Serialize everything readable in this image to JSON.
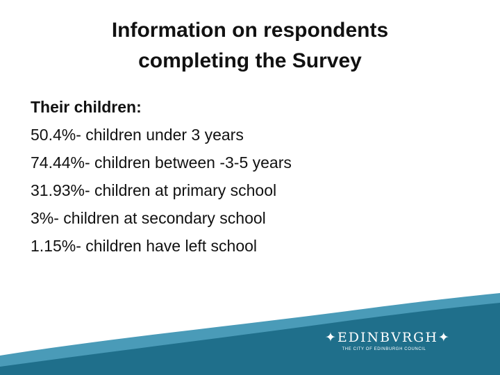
{
  "slide": {
    "title_line1": "Information on respondents",
    "title_line2": "completing the Survey",
    "heading": "Their children:",
    "items": [
      "50.4%- children under 3 years",
      "74.44%- children between -3-5 years",
      "31.93%- children at primary school",
      "3%- children at secondary school",
      "1.15%- children have left school"
    ]
  },
  "logo": {
    "main": "✦EDINBVRGH✦",
    "sub": "THE CITY OF EDINBURGH COUNCIL"
  },
  "colors": {
    "wave_dark": "#1f6f8b",
    "wave_light": "#4a9bb8",
    "text": "#111111",
    "background": "#ffffff"
  }
}
